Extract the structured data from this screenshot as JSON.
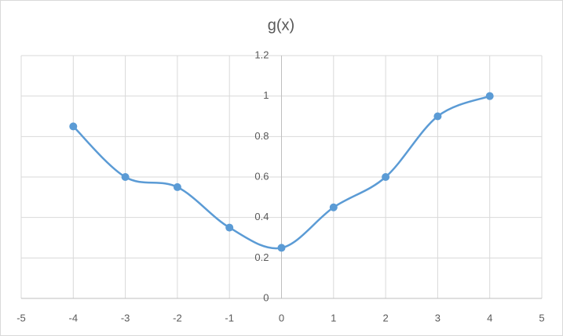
{
  "chart_data": {
    "type": "scatter-smooth-line",
    "title": "g(x)",
    "x": [
      -4,
      -3,
      -2,
      -1,
      0,
      1,
      2,
      3,
      4
    ],
    "values": [
      0.85,
      0.6,
      0.55,
      0.35,
      0.25,
      0.45,
      0.6,
      0.9,
      1
    ],
    "color": "#5b9bd5",
    "xlim": [
      -5,
      5
    ],
    "xticks": [
      -5,
      -4,
      -3,
      -2,
      -1,
      0,
      1,
      2,
      3,
      4,
      5
    ],
    "ylim": [
      0,
      1.2
    ],
    "yticks": [
      0,
      0.2,
      0.4,
      0.6,
      0.8,
      1,
      1.2
    ],
    "grid": true,
    "smooth": true
  }
}
